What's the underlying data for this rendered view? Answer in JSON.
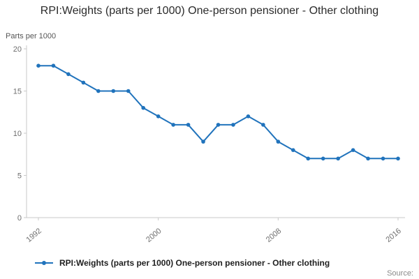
{
  "title": "RPI:Weights (parts per 1000) One-person pensioner - Other clothing",
  "y_axis_unit": "Parts per 1000",
  "source_label": "Source:",
  "legend_label": "RPI:Weights (parts per 1000) One-person pensioner - Other clothing",
  "colors": {
    "line": "#2073bc",
    "axis": "#c9c9c9",
    "tick_text": "#6e6e6e",
    "title_text": "#2b2b2b"
  },
  "chart_data": {
    "type": "line",
    "title": "RPI:Weights (parts per 1000) One-person pensioner - Other clothing",
    "xlabel": "",
    "ylabel": "Parts per 1000",
    "ylim": [
      0,
      20
    ],
    "y_ticks": [
      0,
      5,
      10,
      15,
      20
    ],
    "x_ticks": [
      1992,
      2000,
      2008,
      2016
    ],
    "grid": false,
    "legend_position": "bottom",
    "x": [
      1992,
      1993,
      1994,
      1995,
      1996,
      1997,
      1998,
      1999,
      2000,
      2001,
      2002,
      2003,
      2004,
      2005,
      2006,
      2007,
      2008,
      2009,
      2010,
      2011,
      2012,
      2013,
      2014,
      2015,
      2016
    ],
    "series": [
      {
        "name": "RPI:Weights (parts per 1000) One-person pensioner - Other clothing",
        "values": [
          18,
          18,
          17,
          16,
          15,
          15,
          15,
          13,
          12,
          11,
          11,
          9,
          11,
          11,
          12,
          11,
          9,
          8,
          7,
          7,
          7,
          8,
          7,
          7,
          7
        ]
      }
    ]
  }
}
